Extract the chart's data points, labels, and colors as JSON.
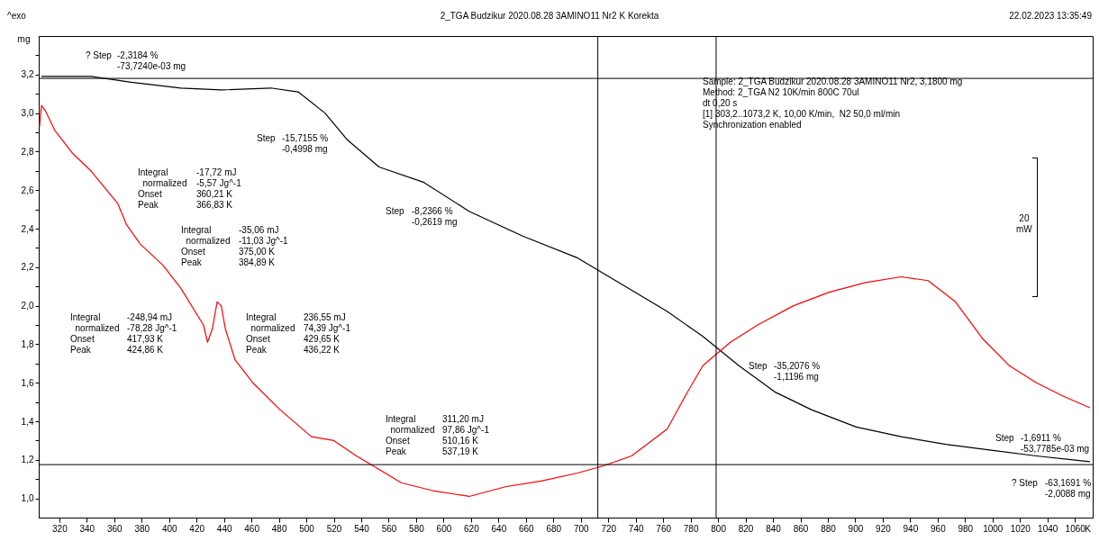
{
  "chart_data": {
    "type": "line",
    "title": "2_TGA Budzikur 2020.08.28 3AMINO11 Nr2 K Korekta",
    "xlabel": "K",
    "ylabel": "mg",
    "xlim": [
      305,
      1073
    ],
    "ylim": [
      0.9,
      3.4
    ],
    "xticks": [
      320,
      340,
      360,
      380,
      400,
      420,
      440,
      460,
      480,
      500,
      520,
      540,
      560,
      580,
      600,
      620,
      640,
      660,
      680,
      700,
      720,
      740,
      760,
      780,
      800,
      820,
      840,
      860,
      880,
      900,
      920,
      940,
      960,
      980,
      1000,
      1020,
      1040,
      1060
    ],
    "yticks": [
      {
        "value": 1.0,
        "label": "1,0"
      },
      {
        "value": 1.1,
        "label": null
      },
      {
        "value": 1.2,
        "label": "1,2"
      },
      {
        "value": 1.3,
        "label": null
      },
      {
        "value": 1.4,
        "label": "1,4"
      },
      {
        "value": 1.5,
        "label": null
      },
      {
        "value": 1.6,
        "label": "1,6"
      },
      {
        "value": 1.7,
        "label": null
      },
      {
        "value": 1.8,
        "label": "1,8"
      },
      {
        "value": 1.9,
        "label": null
      },
      {
        "value": 2.0,
        "label": "2,0"
      },
      {
        "value": 2.1,
        "label": null
      },
      {
        "value": 2.2,
        "label": "2,2"
      },
      {
        "value": 2.3,
        "label": null
      },
      {
        "value": 2.4,
        "label": "2,4"
      },
      {
        "value": 2.5,
        "label": null
      },
      {
        "value": 2.6,
        "label": "2,6"
      },
      {
        "value": 2.7,
        "label": null
      },
      {
        "value": 2.8,
        "label": "2,8"
      },
      {
        "value": 2.9,
        "label": null
      },
      {
        "value": 3.0,
        "label": "3,0"
      },
      {
        "value": 3.1,
        "label": null
      },
      {
        "value": 3.2,
        "label": "3,2"
      },
      {
        "value": 3.3,
        "label": null
      }
    ],
    "grid": false,
    "legend": false,
    "marker": "none",
    "line_style": "solid",
    "series": [
      {
        "color": "#000000",
        "x": [
          307,
          343,
          372.5,
          408.6,
          438,
          474,
          494,
          513.6,
          530,
          553,
          585.7,
          618.6,
          658,
          697,
          730,
          763,
          789,
          815,
          842,
          868,
          900.7,
          933.5,
          966,
          999,
          1032,
          1071
        ],
        "values": [
          3.19,
          3.19,
          3.16,
          3.13,
          3.12,
          3.13,
          3.11,
          3.0,
          2.86,
          2.72,
          2.64,
          2.49,
          2.36,
          2.25,
          2.11,
          1.97,
          1.84,
          1.69,
          1.55,
          1.46,
          1.37,
          1.32,
          1.28,
          1.25,
          1.22,
          1.19
        ]
      },
      {
        "color": "#ff0000",
        "x": [
          305.6,
          307,
          310,
          316.7,
          329.8,
          343,
          362.6,
          369,
          379,
          395.5,
          408.6,
          425,
          428,
          431.5,
          435,
          438,
          441,
          448,
          461,
          480.8,
          503.7,
          520,
          536.5,
          553,
          569.4,
          592,
          618.6,
          645,
          671,
          697,
          717,
          737,
          763,
          776,
          789,
          809,
          828.8,
          855,
          881,
          907.5,
          933.5,
          953,
          973,
          992.6,
          1012,
          1032,
          1051.7,
          1071
        ],
        "values": [
          2.93,
          3.04,
          3.01,
          2.91,
          2.79,
          2.7,
          2.53,
          2.42,
          2.32,
          2.21,
          2.09,
          1.9,
          1.81,
          1.88,
          2.02,
          2.0,
          1.88,
          1.72,
          1.6,
          1.46,
          1.32,
          1.3,
          1.22,
          1.15,
          1.08,
          1.04,
          1.01,
          1.06,
          1.09,
          1.13,
          1.17,
          1.22,
          1.36,
          1.53,
          1.69,
          1.81,
          1.9,
          2.0,
          2.07,
          2.12,
          2.15,
          2.13,
          2.02,
          1.83,
          1.69,
          1.6,
          1.53,
          1.47
        ]
      }
    ],
    "ref_lines": [
      {
        "axis": "y",
        "value": 3.18,
        "color": "#000000"
      },
      {
        "axis": "y",
        "value": 1.175,
        "color": "#000000"
      },
      {
        "axis": "x",
        "value": 712.4,
        "color": "#000000"
      },
      {
        "axis": "x",
        "value": 798.6,
        "color": "#000000"
      }
    ],
    "annotations": [
      "^exo",
      "22.02.2023 13:35:49",
      "Sample: 2_TGA Budzikur 2020.08.28 3AMINO11 Nr2, 3,1800 mg\nMethod: 2_TGA N2 10K/min 800C 70ul\ndt 0,20 s\n[1] 303,2..1073,2 K, 10,00 K/min,  N2 50,0 ml/min\nSynchronization enabled",
      "20\nmW",
      "? Step",
      "-2,3184 %\n-73,7240e-03 mg",
      "Step",
      "-15,7155 %\n-0,4998 mg",
      "Step",
      "-8,2366 %\n-0,2619 mg",
      "Step",
      "-35,2076 %\n-1,1196 mg",
      "Step",
      "-1,6911 %\n-53,7785e-03 mg",
      "? Step",
      "-63,1691 %\n-2,0088 mg",
      "Integral\n  normalized\nOnset\nPeak",
      "-17,72 mJ\n-5,57 Jg^-1\n360,21 K\n366,83 K",
      "Integral\n  normalized\nOnset\nPeak",
      "-35,06 mJ\n-11,03 Jg^-1\n375,00 K\n384,89 K",
      "Integral\n  normalized\nOnset\nPeak",
      "-248,94 mJ\n-78,28 Jg^-1\n417,93 K\n424,86 K",
      "Integral\n  normalized\nOnset\nPeak",
      "236,55 mJ\n74,39 Jg^-1\n429,65 K\n436,22 K",
      "Integral\n  normalized\nOnset\nPeak",
      "311,20 mJ\n97,86 Jg^-1\n510,16 K\n537,19 K"
    ]
  }
}
